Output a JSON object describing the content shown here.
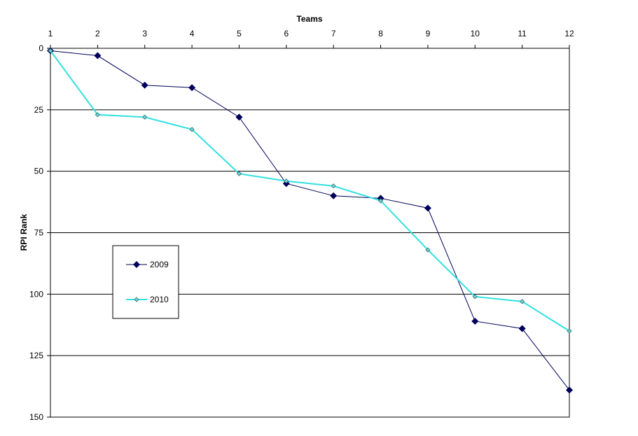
{
  "chart_data": {
    "type": "line",
    "xlabel": "Teams",
    "ylabel": "RPI Rank",
    "x": [
      1,
      2,
      3,
      4,
      5,
      6,
      7,
      8,
      9,
      10,
      11,
      12
    ],
    "xlim": [
      1,
      12
    ],
    "ylim": [
      0,
      150
    ],
    "y_reversed": true,
    "x_axis_position": "top",
    "y_ticks": [
      0,
      25,
      50,
      75,
      100,
      125,
      150
    ],
    "grid": "horizontal",
    "legend_position": "left",
    "series": [
      {
        "name": "2009",
        "color": "#00005a",
        "marker": "diamond",
        "values": [
          1,
          3,
          15,
          16,
          28,
          55,
          60,
          61,
          65,
          111,
          114,
          139
        ]
      },
      {
        "name": "2010",
        "color": "#33e0e0",
        "marker": "diamond",
        "values": [
          1,
          27,
          28,
          33,
          51,
          54,
          56,
          62,
          82,
          101,
          103,
          115
        ]
      }
    ]
  }
}
